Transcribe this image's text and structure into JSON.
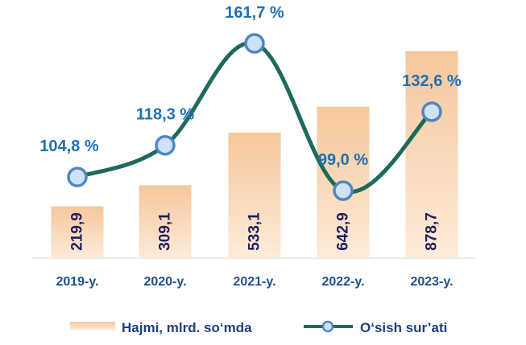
{
  "chart_data": {
    "type": "bar+line",
    "categories": [
      "2019-y.",
      "2020-y.",
      "2021-y.",
      "2022-y.",
      "2023-y."
    ],
    "series": [
      {
        "name": "Hajmi, mlrd. so‘mda",
        "type": "bar",
        "values": [
          219.9,
          309.1,
          533.1,
          642.9,
          878.7
        ],
        "labels": [
          "219,9",
          "309,1",
          "533,1",
          "642,9",
          "878,7"
        ]
      },
      {
        "name": "O‘sish sur’ati",
        "type": "line",
        "values": [
          104.8,
          118.3,
          161.7,
          99.0,
          132.6
        ],
        "labels": [
          "104,8 %",
          "118,3 %",
          "161,7 %",
          "99,0 %",
          "132,6 %"
        ]
      }
    ],
    "colors": {
      "bar_top": "#f6c79b",
      "bar_bottom": "#fdebd9",
      "line": "#1c6a5c",
      "marker_fill": "#cfe3f7",
      "marker_stroke": "#4f86c6",
      "pct_text": "#1f6fb4",
      "bar_text": "#1f1f5e"
    },
    "legend_position": "bottom",
    "grid": false
  }
}
